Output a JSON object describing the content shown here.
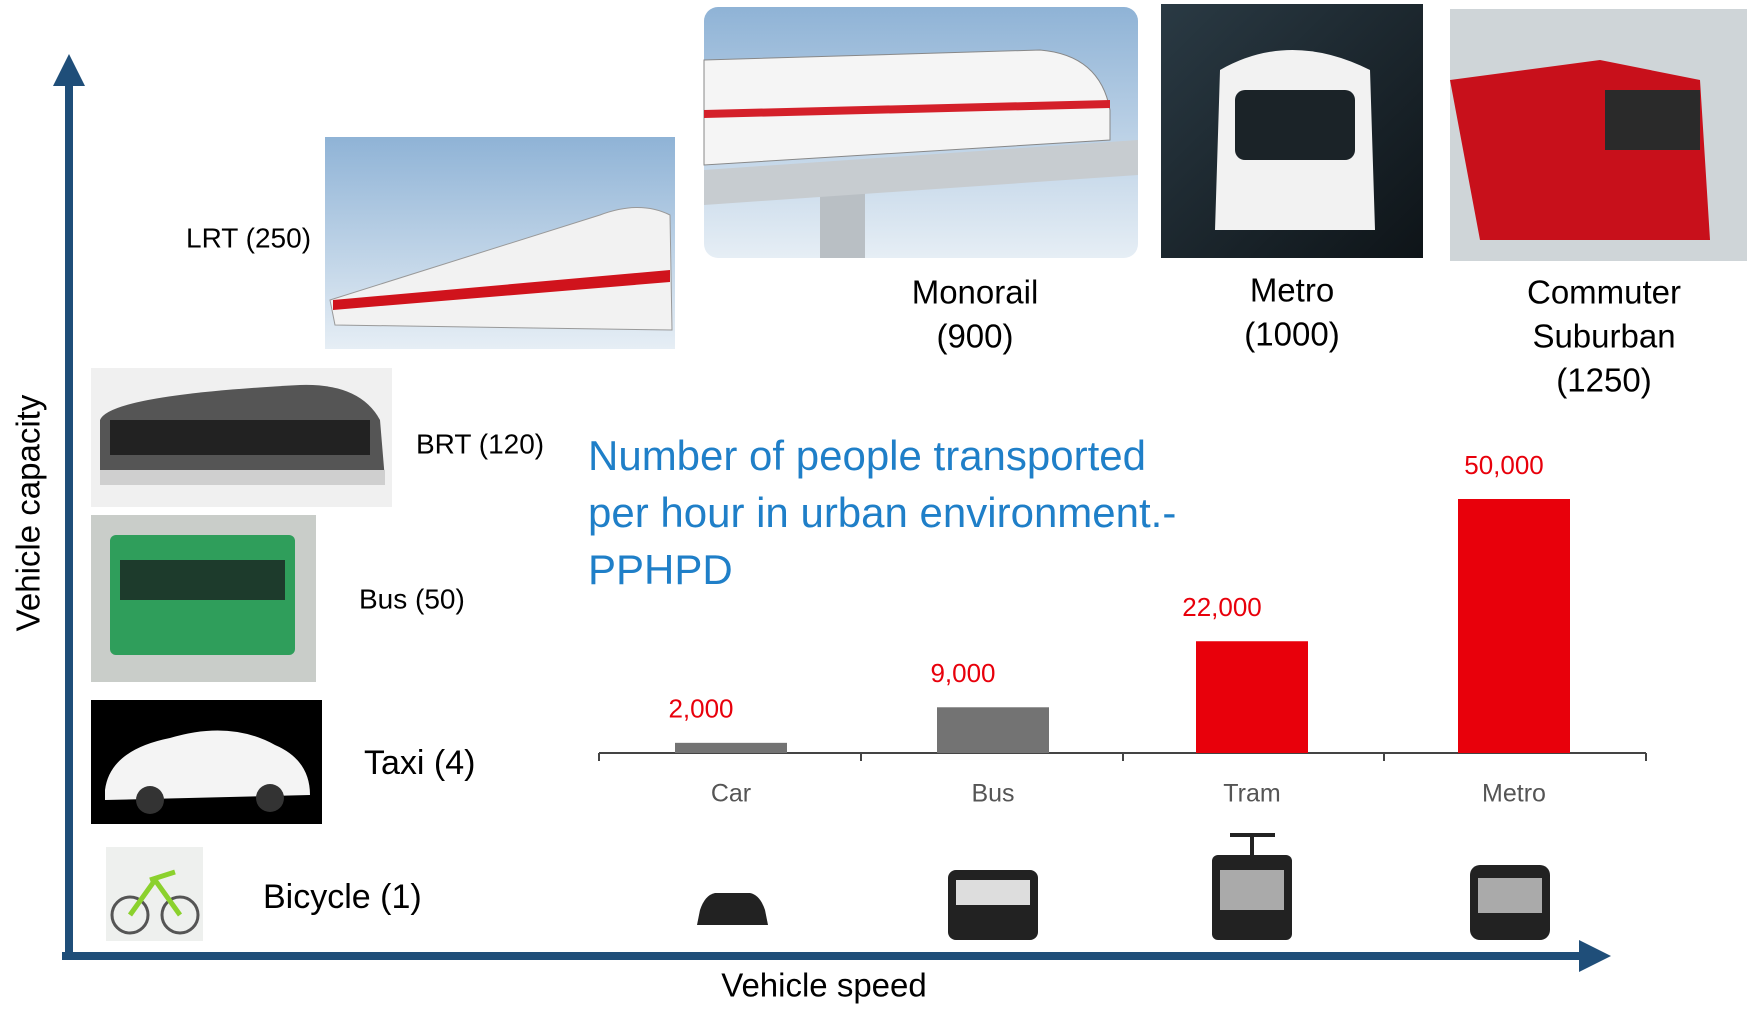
{
  "axes": {
    "y_label": "Vehicle capacity",
    "x_label": "Vehicle speed"
  },
  "modes": [
    {
      "lines": [
        "LRT (250)"
      ]
    },
    {
      "lines": [
        "BRT (120)"
      ]
    },
    {
      "lines": [
        "Bus (50)"
      ]
    },
    {
      "lines": [
        "Taxi (4)"
      ]
    },
    {
      "lines": [
        "Bicycle (1)"
      ]
    },
    {
      "lines": [
        "Monorail",
        "(900)"
      ]
    },
    {
      "lines": [
        "Metro",
        "(1000)"
      ]
    },
    {
      "lines": [
        "Commuter",
        "Suburban",
        "(1250)"
      ]
    }
  ],
  "chart_data": {
    "type": "bar",
    "title": [
      "Number of people transported",
      "per hour in urban  environment.-",
      "PPHPD"
    ],
    "categories": [
      "Car",
      "Bus",
      "Tram",
      "Metro"
    ],
    "values": [
      2000,
      9000,
      22000,
      50000
    ],
    "value_labels": [
      "2,000",
      "9,000",
      "22,000",
      "50,000"
    ],
    "colors": [
      "#737373",
      "#737373",
      "#e8000b",
      "#e8000b"
    ],
    "value_label_color": "#e8000b"
  }
}
